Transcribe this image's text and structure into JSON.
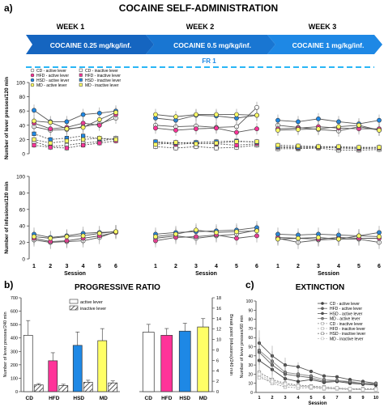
{
  "panel_labels": {
    "a": "a)",
    "b": "b)",
    "c": "c)"
  },
  "header": {
    "title": "COCAINE SELF-ADMINISTRATION",
    "weeks": [
      "WEEK 1",
      "WEEK 2",
      "WEEK 3"
    ],
    "doses": [
      "COCAINE 0.25 mg/kg/inf.",
      "COCAINE 0.5 mg/kg/inf.",
      "COCAINE 1 mg/kg/inf."
    ],
    "schedule": "FR 1"
  },
  "colors": {
    "CD": "#ffffff",
    "HFD": "#ff3399",
    "HSD": "#1e88e5",
    "MD": "#ffff66",
    "banner1": "#1565c0",
    "banner2": "#1976d2",
    "banner3": "#1e88e5",
    "dash": "#29b6f6"
  },
  "legend_a": {
    "active": [
      "CD - active lever",
      "HFD - active lever",
      "HSD - active lever",
      "MD - active lever"
    ],
    "inactive": [
      "CD - inactive lever",
      "HFD - inactive lever",
      "HSD - inactive lever",
      "MD - inactive lever"
    ]
  },
  "legend_b": [
    "active lever",
    "inactive lever"
  ],
  "legend_c": [
    "CD - active lever",
    "HFD - active lever",
    "HSD - active lever",
    "MD - active lever",
    "CD - inactive lever",
    "HFD - inactive lever",
    "HSD - inactive lever",
    "MD - inactive lever"
  ],
  "chart_data": [
    {
      "type": "line",
      "panel": "a-top",
      "ylabel": "Number of lever presses/120 min",
      "ylim": [
        0,
        100
      ],
      "yticks": [
        0,
        20,
        40,
        60,
        80,
        100
      ],
      "x": [
        1,
        2,
        3,
        4,
        5,
        6
      ],
      "weeks": [
        {
          "series": [
            {
              "name": "CD - active lever",
              "values": [
                38,
                33,
                34,
                38,
                42,
                50
              ]
            },
            {
              "name": "HFD - active lever",
              "values": [
                43,
                35,
                37,
                43,
                40,
                55
              ]
            },
            {
              "name": "HSD - active lever",
              "values": [
                61,
                45,
                45,
                55,
                57,
                60
              ]
            },
            {
              "name": "MD - active lever",
              "values": [
                46,
                44,
                35,
                37,
                48,
                58
              ]
            },
            {
              "name": "CD - inactive lever",
              "values": [
                17,
                10,
                12,
                15,
                17,
                22
              ]
            },
            {
              "name": "HFD - inactive lever",
              "values": [
                12,
                9,
                8,
                12,
                15,
                18
              ]
            },
            {
              "name": "HSD - inactive lever",
              "values": [
                28,
                20,
                22,
                25,
                21,
                20
              ]
            },
            {
              "name": "MD - inactive lever",
              "values": [
                20,
                15,
                18,
                20,
                22,
                20
              ]
            }
          ]
        },
        {
          "series": [
            {
              "name": "CD - active lever",
              "values": [
                40,
                38,
                39,
                37,
                38,
                65
              ]
            },
            {
              "name": "HFD - active lever",
              "values": [
                36,
                33,
                35,
                36,
                30,
                35
              ]
            },
            {
              "name": "HSD - active lever",
              "values": [
                50,
                47,
                54,
                53,
                50,
                54
              ]
            },
            {
              "name": "MD - active lever",
              "values": [
                55,
                52,
                55,
                55,
                55,
                54
              ]
            },
            {
              "name": "CD - inactive lever",
              "values": [
                10,
                8,
                10,
                8,
                9,
                12
              ]
            },
            {
              "name": "HFD - inactive lever",
              "values": [
                16,
                13,
                15,
                14,
                12,
                14
              ]
            },
            {
              "name": "HSD - inactive lever",
              "values": [
                17,
                15,
                16,
                17,
                18,
                16
              ]
            },
            {
              "name": "MD - inactive lever",
              "values": [
                13,
                16,
                14,
                15,
                17,
                17
              ]
            }
          ]
        },
        {
          "series": [
            {
              "name": "CD - active lever",
              "values": [
                40,
                37,
                34,
                32,
                38,
                33
              ]
            },
            {
              "name": "HFD - active lever",
              "values": [
                35,
                36,
                38,
                36,
                35,
                35
              ]
            },
            {
              "name": "HSD - active lever",
              "values": [
                47,
                45,
                49,
                45,
                42,
                47
              ]
            },
            {
              "name": "MD - active lever",
              "values": [
                33,
                34,
                35,
                38,
                40,
                33
              ]
            },
            {
              "name": "CD - inactive lever",
              "values": [
                7,
                7,
                8,
                5,
                5,
                6
              ]
            },
            {
              "name": "HFD - inactive lever",
              "values": [
                9,
                8,
                9,
                8,
                7,
                8
              ]
            },
            {
              "name": "HSD - inactive lever",
              "values": [
                10,
                9,
                10,
                9,
                8,
                9
              ]
            },
            {
              "name": "MD - inactive lever",
              "values": [
                12,
                11,
                10,
                10,
                9,
                9
              ]
            }
          ]
        }
      ]
    },
    {
      "type": "line",
      "panel": "a-bottom",
      "ylabel": "Number of infusions/120 min",
      "xlabel": "Session",
      "ylim": [
        0,
        100
      ],
      "yticks": [
        0,
        20,
        40,
        60,
        80,
        100
      ],
      "x": [
        1,
        2,
        3,
        4,
        5,
        6
      ],
      "xtick_labels": [
        "1",
        "2",
        "3",
        "4",
        "5",
        "6"
      ],
      "weeks": [
        {
          "series": [
            {
              "name": "CD",
              "values": [
                23,
                20,
                21,
                22,
                26,
                33
              ]
            },
            {
              "name": "HFD",
              "values": [
                25,
                21,
                22,
                25,
                28,
                32
              ]
            },
            {
              "name": "HSD",
              "values": [
                30,
                26,
                28,
                31,
                32,
                33
              ]
            },
            {
              "name": "MD",
              "values": [
                27,
                25,
                27,
                28,
                31,
                33
              ]
            }
          ]
        },
        {
          "series": [
            {
              "name": "CD",
              "values": [
                25,
                28,
                25,
                28,
                30,
                35
              ]
            },
            {
              "name": "HFD",
              "values": [
                22,
                26,
                27,
                29,
                25,
                28
              ]
            },
            {
              "name": "HSD",
              "values": [
                30,
                32,
                33,
                34,
                35,
                38
              ]
            },
            {
              "name": "MD",
              "values": [
                27,
                30,
                35,
                32,
                33,
                34
              ]
            }
          ]
        },
        {
          "series": [
            {
              "name": "CD",
              "values": [
                25,
                20,
                23,
                24,
                24,
                20
              ]
            },
            {
              "name": "HFD",
              "values": [
                26,
                25,
                24,
                26,
                25,
                25
              ]
            },
            {
              "name": "HSD",
              "values": [
                30,
                29,
                30,
                29,
                28,
                32
              ]
            },
            {
              "name": "MD",
              "values": [
                24,
                25,
                26,
                24,
                28,
                27
              ]
            }
          ]
        }
      ]
    },
    {
      "type": "bar",
      "panel": "b-left",
      "title": "PROGRESSIVE RATIO",
      "ylabel": "Number of lever presses/240 min",
      "ylim": [
        0,
        700
      ],
      "yticks": [
        0,
        100,
        200,
        300,
        400,
        500,
        600,
        700
      ],
      "categories": [
        "CD",
        "HFD",
        "HSD",
        "MD"
      ],
      "series": [
        {
          "name": "active lever",
          "values": [
            420,
            230,
            345,
            380
          ],
          "errors": [
            110,
            60,
            100,
            90
          ]
        },
        {
          "name": "inactive lever",
          "values": [
            50,
            45,
            70,
            65
          ],
          "errors": [
            10,
            10,
            15,
            15
          ]
        }
      ]
    },
    {
      "type": "bar",
      "panel": "b-right",
      "ylabel": "Break point (infusions)/240 min",
      "ylim": [
        0,
        18
      ],
      "yticks": [
        0,
        2,
        4,
        6,
        8,
        10,
        12,
        14,
        16,
        18
      ],
      "categories": [
        "CD",
        "HFD",
        "HSD",
        "MD"
      ],
      "values": [
        11.4,
        10.8,
        11.6,
        12.4
      ],
      "errors": [
        1.5,
        1.3,
        1.5,
        1.6
      ]
    },
    {
      "type": "line",
      "panel": "c",
      "title": "EXTINCTION",
      "ylabel": "Number of lever presses/60 min",
      "xlabel": "Session",
      "ylim": [
        0,
        100
      ],
      "yticks": [
        0,
        10,
        20,
        30,
        40,
        50,
        60,
        70,
        80,
        90,
        100
      ],
      "x": [
        1,
        2,
        3,
        4,
        5,
        6,
        7,
        8,
        9,
        10
      ],
      "series": [
        {
          "name": "CD - active lever",
          "values": [
            35,
            25,
            15,
            12,
            14,
            11,
            12,
            10,
            9,
            8
          ]
        },
        {
          "name": "HFD - active lever",
          "values": [
            44,
            30,
            20,
            18,
            16,
            12,
            13,
            11,
            10,
            9
          ]
        },
        {
          "name": "HSD - active lever",
          "values": [
            54,
            40,
            30,
            28,
            23,
            18,
            17,
            14,
            12,
            10
          ]
        },
        {
          "name": "MD - active lever",
          "values": [
            46,
            34,
            22,
            20,
            18,
            14,
            13,
            12,
            10,
            10
          ]
        },
        {
          "name": "CD - inactive lever",
          "values": [
            18,
            10,
            6,
            5,
            5,
            4,
            4,
            3,
            3,
            3
          ]
        },
        {
          "name": "HFD - inactive lever",
          "values": [
            16,
            12,
            8,
            7,
            6,
            5,
            4,
            4,
            3,
            3
          ]
        },
        {
          "name": "HSD - inactive lever",
          "values": [
            22,
            14,
            10,
            8,
            7,
            6,
            5,
            4,
            4,
            4
          ]
        },
        {
          "name": "MD - inactive lever",
          "values": [
            20,
            12,
            9,
            7,
            6,
            5,
            5,
            4,
            3,
            3
          ]
        }
      ]
    }
  ]
}
